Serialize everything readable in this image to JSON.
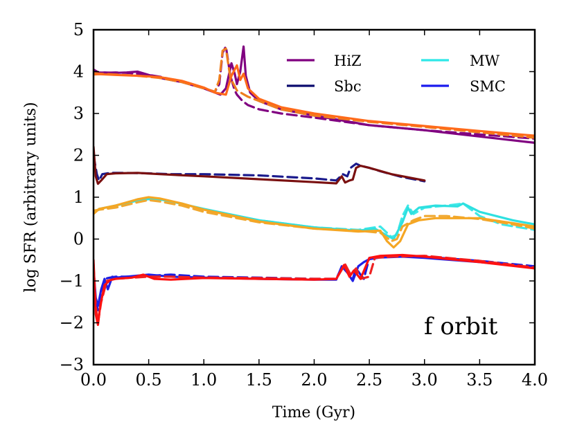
{
  "chart_data": {
    "type": "line",
    "title": "",
    "xlabel": "Time (Gyr)",
    "ylabel": "log SFR (arbitrary units)",
    "xlim": [
      0.0,
      4.0
    ],
    "ylim": [
      -3,
      5
    ],
    "xticks": [
      0.0,
      0.5,
      1.0,
      1.5,
      2.0,
      2.5,
      3.0,
      3.5,
      4.0
    ],
    "xtick_labels": [
      "0.0",
      "0.5",
      "1.0",
      "1.5",
      "2.0",
      "2.5",
      "3.0",
      "3.5",
      "4.0"
    ],
    "yticks": [
      -3,
      -2,
      -1,
      0,
      1,
      2,
      3,
      4,
      5
    ],
    "ytick_labels": [
      "−3",
      "−2",
      "−1",
      "0",
      "1",
      "2",
      "3",
      "4",
      "5"
    ],
    "grid": false,
    "legend_position": "top-right",
    "legend": [
      {
        "label": "HiZ",
        "color": "#800080"
      },
      {
        "label": "MW",
        "color": "#2ee8e8"
      },
      {
        "label": "Sbc",
        "color": "#0a0a6e"
      },
      {
        "label": "SMC",
        "color": "#1a1aee"
      }
    ],
    "annotation": "f orbit",
    "series": [
      {
        "name": "HiZ (dashed)",
        "group": "HiZ",
        "color": "#800080",
        "style": "dashed",
        "x": [
          0.0,
          0.05,
          0.1,
          0.2,
          0.3,
          0.4,
          0.5,
          0.6,
          0.8,
          1.0,
          1.1,
          1.14,
          1.17,
          1.2,
          1.24,
          1.28,
          1.3,
          1.35,
          1.4,
          1.5,
          1.7,
          2.0,
          2.5,
          3.0,
          3.5,
          4.0
        ],
        "y": [
          4.0,
          3.98,
          3.97,
          3.98,
          3.97,
          3.95,
          3.92,
          3.88,
          3.76,
          3.6,
          3.52,
          3.7,
          4.45,
          4.6,
          3.9,
          3.55,
          3.45,
          3.3,
          3.2,
          3.1,
          3.0,
          2.9,
          2.72,
          2.6,
          2.5,
          2.4
        ]
      },
      {
        "name": "HiZ (solid)",
        "group": "HiZ",
        "color": "#800080",
        "style": "solid",
        "x": [
          0.0,
          0.05,
          0.1,
          0.2,
          0.3,
          0.4,
          0.45,
          0.5,
          0.6,
          0.8,
          1.0,
          1.1,
          1.15,
          1.2,
          1.25,
          1.28,
          1.3,
          1.33,
          1.36,
          1.38,
          1.42,
          1.5,
          1.7,
          2.0,
          2.5,
          3.0,
          3.5,
          4.0
        ],
        "y": [
          4.05,
          3.97,
          3.98,
          3.97,
          3.98,
          4.0,
          3.96,
          3.92,
          3.85,
          3.75,
          3.6,
          3.5,
          3.45,
          3.6,
          4.2,
          3.95,
          3.7,
          4.0,
          4.6,
          3.9,
          3.5,
          3.3,
          3.1,
          2.95,
          2.72,
          2.6,
          2.45,
          2.3
        ]
      },
      {
        "name": "MW (dashed)",
        "group": "MW",
        "color": "#ee7e1e",
        "style": "dashed",
        "x": [
          0.0,
          0.05,
          0.2,
          0.4,
          0.6,
          0.8,
          1.0,
          1.1,
          1.14,
          1.17,
          1.2,
          1.24,
          1.3,
          1.4,
          1.5,
          1.7,
          2.0,
          2.5,
          3.0,
          3.5,
          4.0
        ],
        "y": [
          3.96,
          3.95,
          3.93,
          3.9,
          3.85,
          3.75,
          3.6,
          3.52,
          3.8,
          4.5,
          4.55,
          3.85,
          3.55,
          3.4,
          3.3,
          3.1,
          2.95,
          2.8,
          2.68,
          2.55,
          2.42
        ]
      },
      {
        "name": "MW (solid)",
        "group": "MW",
        "color": "#ff6a1a",
        "style": "solid",
        "x": [
          0.0,
          0.05,
          0.2,
          0.4,
          0.6,
          0.8,
          1.0,
          1.1,
          1.2,
          1.25,
          1.3,
          1.33,
          1.36,
          1.4,
          1.5,
          1.7,
          2.0,
          2.5,
          3.0,
          3.5,
          4.0
        ],
        "y": [
          3.93,
          3.94,
          3.92,
          3.9,
          3.87,
          3.78,
          3.62,
          3.5,
          3.45,
          3.9,
          4.15,
          3.8,
          3.95,
          3.6,
          3.35,
          3.15,
          3.0,
          2.82,
          2.7,
          2.58,
          2.47
        ]
      },
      {
        "name": "Sbc (dashed)",
        "group": "Sbc",
        "color": "#1a1a8c",
        "style": "dashed",
        "x": [
          0.0,
          0.03,
          0.05,
          0.08,
          0.15,
          0.3,
          0.5,
          0.7,
          1.0,
          1.5,
          2.0,
          2.2,
          2.26,
          2.3,
          2.33,
          2.38,
          2.42,
          2.5,
          2.6,
          2.8,
          3.0
        ],
        "y": [
          2.0,
          1.55,
          1.4,
          1.55,
          1.58,
          1.58,
          1.57,
          1.55,
          1.55,
          1.52,
          1.45,
          1.4,
          1.55,
          1.5,
          1.7,
          1.8,
          1.75,
          1.7,
          1.62,
          1.48,
          1.38
        ]
      },
      {
        "name": "Sbc (solid)",
        "group": "Sbc",
        "color": "#7a1010",
        "style": "solid",
        "x": [
          0.0,
          0.02,
          0.04,
          0.07,
          0.12,
          0.2,
          0.4,
          0.6,
          1.0,
          1.5,
          2.0,
          2.2,
          2.25,
          2.28,
          2.32,
          2.35,
          2.38,
          2.42,
          2.5,
          2.7,
          3.0
        ],
        "y": [
          2.2,
          1.5,
          1.32,
          1.4,
          1.55,
          1.57,
          1.58,
          1.55,
          1.5,
          1.43,
          1.36,
          1.33,
          1.5,
          1.35,
          1.4,
          1.42,
          1.7,
          1.75,
          1.7,
          1.55,
          1.4
        ]
      },
      {
        "name": "MW-group (dashed, cyan)",
        "group": "MW",
        "color": "#3ee8e8",
        "style": "dashed",
        "x": [
          0.0,
          0.05,
          0.2,
          0.4,
          0.6,
          0.8,
          1.0,
          1.5,
          2.0,
          2.4,
          2.6,
          2.7,
          2.75,
          2.8,
          2.85,
          2.9,
          3.0,
          3.2,
          3.35,
          3.5,
          3.7,
          4.0
        ],
        "y": [
          0.65,
          0.7,
          0.78,
          0.95,
          0.95,
          0.85,
          0.7,
          0.45,
          0.28,
          0.22,
          0.3,
          0.05,
          0.1,
          0.55,
          0.8,
          0.6,
          0.75,
          0.8,
          0.85,
          0.55,
          0.35,
          0.22
        ]
      },
      {
        "name": "MW-group (solid, cyan)",
        "group": "MW",
        "color": "#2ee0e0",
        "style": "solid",
        "x": [
          0.0,
          0.05,
          0.2,
          0.4,
          0.55,
          0.7,
          1.0,
          1.5,
          2.0,
          2.4,
          2.55,
          2.65,
          2.72,
          2.8,
          2.85,
          2.88,
          2.95,
          3.1,
          3.3,
          3.35,
          3.5,
          3.8,
          4.0
        ],
        "y": [
          0.62,
          0.72,
          0.8,
          0.92,
          0.97,
          0.9,
          0.72,
          0.45,
          0.28,
          0.2,
          0.25,
          0.1,
          0.0,
          0.4,
          0.75,
          0.6,
          0.75,
          0.8,
          0.78,
          0.85,
          0.65,
          0.45,
          0.35
        ]
      },
      {
        "name": "Orange (dashed)",
        "group": "MW",
        "color": "#f0a830",
        "style": "dashed",
        "x": [
          0.0,
          0.05,
          0.2,
          0.4,
          0.5,
          0.6,
          0.8,
          1.0,
          1.5,
          2.0,
          2.4,
          2.6,
          2.7,
          2.75,
          2.8,
          2.9,
          3.0,
          3.2,
          3.5,
          3.8,
          4.0
        ],
        "y": [
          0.68,
          0.7,
          0.75,
          0.88,
          0.93,
          0.9,
          0.8,
          0.65,
          0.4,
          0.25,
          0.2,
          0.15,
          -0.05,
          0.0,
          0.3,
          0.45,
          0.55,
          0.55,
          0.48,
          0.35,
          0.25
        ]
      },
      {
        "name": "Orange (solid)",
        "group": "MW",
        "color": "#f5a623",
        "style": "solid",
        "x": [
          0.0,
          0.05,
          0.2,
          0.4,
          0.5,
          0.6,
          0.8,
          1.0,
          1.5,
          2.0,
          2.4,
          2.6,
          2.66,
          2.72,
          2.78,
          2.85,
          2.95,
          3.1,
          3.5,
          3.8,
          4.0
        ],
        "y": [
          0.6,
          0.72,
          0.8,
          0.95,
          1.0,
          0.97,
          0.85,
          0.7,
          0.42,
          0.25,
          0.18,
          0.2,
          -0.05,
          -0.2,
          -0.05,
          0.35,
          0.45,
          0.5,
          0.5,
          0.38,
          0.3
        ]
      },
      {
        "name": "SMC (dashed)",
        "group": "SMC",
        "color": "#1a1add",
        "style": "dashed",
        "x": [
          0.0,
          0.02,
          0.04,
          0.07,
          0.1,
          0.15,
          0.2,
          0.3,
          0.5,
          0.7,
          1.0,
          1.5,
          2.0,
          2.2,
          2.26,
          2.3,
          2.35,
          2.38,
          2.42,
          2.45,
          2.5,
          2.6,
          2.8,
          3.0,
          3.5,
          4.0
        ],
        "y": [
          -0.8,
          -1.5,
          -1.7,
          -1.3,
          -0.95,
          -0.92,
          -0.9,
          -0.9,
          -0.88,
          -0.85,
          -0.9,
          -0.92,
          -0.95,
          -0.95,
          -0.62,
          -0.75,
          -0.95,
          -0.7,
          -0.85,
          -0.95,
          -0.45,
          -0.42,
          -0.4,
          -0.42,
          -0.52,
          -0.65
        ]
      },
      {
        "name": "SMC (solid)",
        "group": "SMC",
        "color": "#2020e6",
        "style": "solid",
        "x": [
          0.0,
          0.02,
          0.04,
          0.07,
          0.1,
          0.13,
          0.17,
          0.2,
          0.3,
          0.5,
          0.7,
          1.0,
          1.5,
          2.0,
          2.2,
          2.25,
          2.3,
          2.35,
          2.4,
          2.45,
          2.5,
          2.6,
          2.8,
          3.0,
          3.5,
          4.0
        ],
        "y": [
          -0.7,
          -1.4,
          -1.6,
          -1.2,
          -0.95,
          -1.2,
          -0.9,
          -0.92,
          -0.9,
          -0.85,
          -0.9,
          -0.92,
          -0.95,
          -0.97,
          -0.97,
          -0.65,
          -0.8,
          -1.0,
          -0.65,
          -0.55,
          -0.48,
          -0.44,
          -0.42,
          -0.45,
          -0.55,
          -0.68
        ]
      },
      {
        "name": "Red (dashed)",
        "group": "SMC",
        "color": "#ee2222",
        "style": "dashed",
        "x": [
          0.0,
          0.02,
          0.04,
          0.07,
          0.12,
          0.2,
          0.3,
          0.5,
          0.7,
          1.0,
          1.5,
          2.0,
          2.2,
          2.28,
          2.33,
          2.38,
          2.42,
          2.5,
          2.55,
          2.7,
          3.0,
          3.5,
          4.0
        ],
        "y": [
          -0.6,
          -1.6,
          -2.0,
          -1.5,
          -1.0,
          -0.95,
          -0.93,
          -0.9,
          -0.9,
          -0.92,
          -0.93,
          -0.95,
          -0.95,
          -0.6,
          -0.85,
          -0.7,
          -0.95,
          -0.9,
          -0.45,
          -0.42,
          -0.4,
          -0.52,
          -0.68
        ]
      },
      {
        "name": "Red (solid)",
        "group": "SMC",
        "color": "#ff1010",
        "style": "solid",
        "x": [
          0.0,
          0.02,
          0.04,
          0.06,
          0.1,
          0.15,
          0.2,
          0.35,
          0.45,
          0.55,
          0.7,
          1.0,
          1.5,
          2.0,
          2.2,
          2.27,
          2.32,
          2.36,
          2.42,
          2.5,
          2.6,
          2.8,
          3.0,
          3.5,
          4.0
        ],
        "y": [
          -0.5,
          -1.8,
          -2.05,
          -1.6,
          -1.1,
          -0.98,
          -0.95,
          -0.92,
          -0.85,
          -0.95,
          -0.97,
          -0.93,
          -0.95,
          -0.97,
          -0.95,
          -0.62,
          -0.9,
          -0.75,
          -0.95,
          -0.45,
          -0.4,
          -0.38,
          -0.42,
          -0.55,
          -0.7
        ]
      }
    ]
  }
}
